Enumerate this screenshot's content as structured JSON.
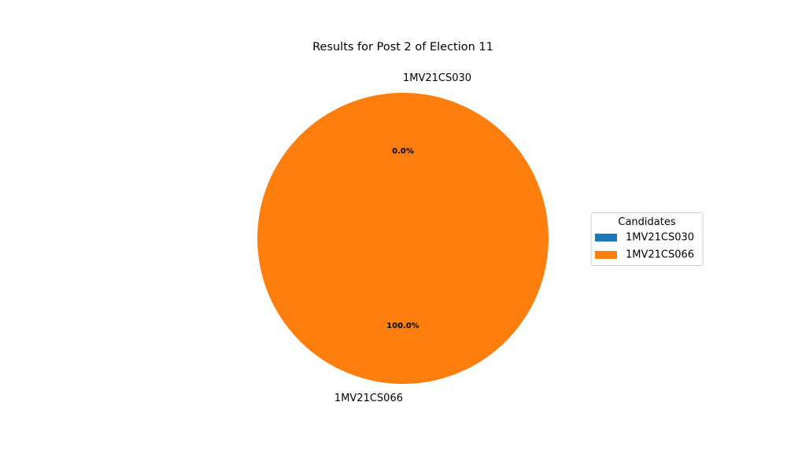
{
  "chart_data": {
    "type": "pie",
    "title": "Results for Post 2 of Election 11",
    "categories": [
      "1MV21CS030",
      "1MV21CS066"
    ],
    "values": [
      0,
      100
    ],
    "percent_labels": [
      "0.0%",
      "100.0%"
    ],
    "colors": [
      "#1f77b4",
      "#ff7f0e"
    ],
    "legend": {
      "title": "Candidates",
      "placement": "center-right",
      "entries": [
        "1MV21CS030",
        "1MV21CS066"
      ]
    }
  }
}
